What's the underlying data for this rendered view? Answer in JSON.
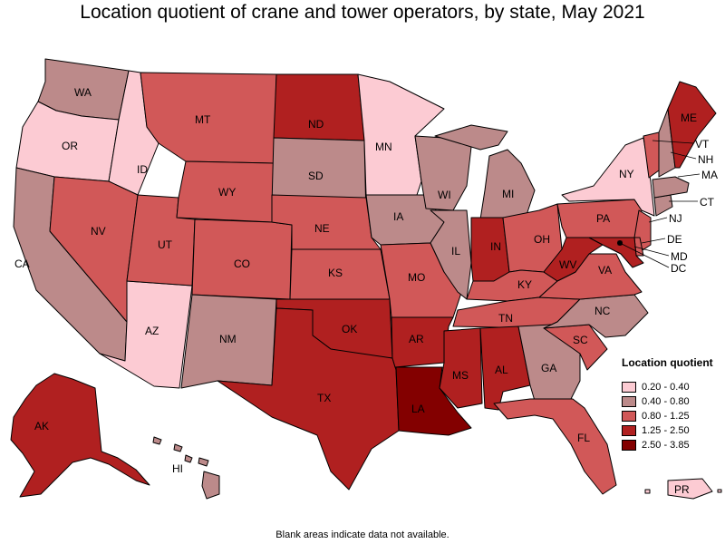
{
  "title": "Location quotient of crane and tower operators, by state, May 2021",
  "footnote": "Blank areas indicate data not available.",
  "legend": {
    "title": "Location quotient",
    "items": [
      {
        "label": "0.20 - 0.40",
        "color": "#fccbd3"
      },
      {
        "label": "0.40 - 0.80",
        "color": "#bc8a8a"
      },
      {
        "label": "0.80 - 1.25",
        "color": "#d15858"
      },
      {
        "label": "1.25 - 2.50",
        "color": "#b02020"
      },
      {
        "label": "2.50 - 3.85",
        "color": "#830000"
      }
    ]
  },
  "states": [
    {
      "code": "WA",
      "bin": 1
    },
    {
      "code": "OR",
      "bin": 0
    },
    {
      "code": "CA",
      "bin": 1
    },
    {
      "code": "ID",
      "bin": 0
    },
    {
      "code": "NV",
      "bin": 2
    },
    {
      "code": "AZ",
      "bin": 0
    },
    {
      "code": "UT",
      "bin": 2
    },
    {
      "code": "MT",
      "bin": 2
    },
    {
      "code": "WY",
      "bin": 2
    },
    {
      "code": "CO",
      "bin": 2
    },
    {
      "code": "NM",
      "bin": 1
    },
    {
      "code": "ND",
      "bin": 3
    },
    {
      "code": "SD",
      "bin": 1
    },
    {
      "code": "NE",
      "bin": 2
    },
    {
      "code": "KS",
      "bin": 2
    },
    {
      "code": "OK",
      "bin": 3
    },
    {
      "code": "TX",
      "bin": 3
    },
    {
      "code": "MN",
      "bin": 0
    },
    {
      "code": "IA",
      "bin": 1
    },
    {
      "code": "MO",
      "bin": 2
    },
    {
      "code": "AR",
      "bin": 3
    },
    {
      "code": "LA",
      "bin": 4
    },
    {
      "code": "WI",
      "bin": 1
    },
    {
      "code": "IL",
      "bin": 1
    },
    {
      "code": "MI",
      "bin": 1
    },
    {
      "code": "IN",
      "bin": 3
    },
    {
      "code": "OH",
      "bin": 2
    },
    {
      "code": "KY",
      "bin": 2
    },
    {
      "code": "TN",
      "bin": 2
    },
    {
      "code": "MS",
      "bin": 3
    },
    {
      "code": "AL",
      "bin": 3
    },
    {
      "code": "GA",
      "bin": 1
    },
    {
      "code": "FL",
      "bin": 2
    },
    {
      "code": "SC",
      "bin": 2
    },
    {
      "code": "NC",
      "bin": 1
    },
    {
      "code": "VA",
      "bin": 2
    },
    {
      "code": "WV",
      "bin": 3
    },
    {
      "code": "PA",
      "bin": 2
    },
    {
      "code": "NY",
      "bin": 0
    },
    {
      "code": "NJ",
      "bin": 2
    },
    {
      "code": "DE",
      "bin": 2
    },
    {
      "code": "MD",
      "bin": 3
    },
    {
      "code": "DC",
      "bin": 2
    },
    {
      "code": "CT",
      "bin": 1
    },
    {
      "code": "MA",
      "bin": 1
    },
    {
      "code": "VT",
      "bin": 2
    },
    {
      "code": "NH",
      "bin": 1
    },
    {
      "code": "ME",
      "bin": 3
    },
    {
      "code": "AK",
      "bin": 3
    },
    {
      "code": "HI",
      "bin": 1
    },
    {
      "code": "PR",
      "bin": 0
    }
  ]
}
